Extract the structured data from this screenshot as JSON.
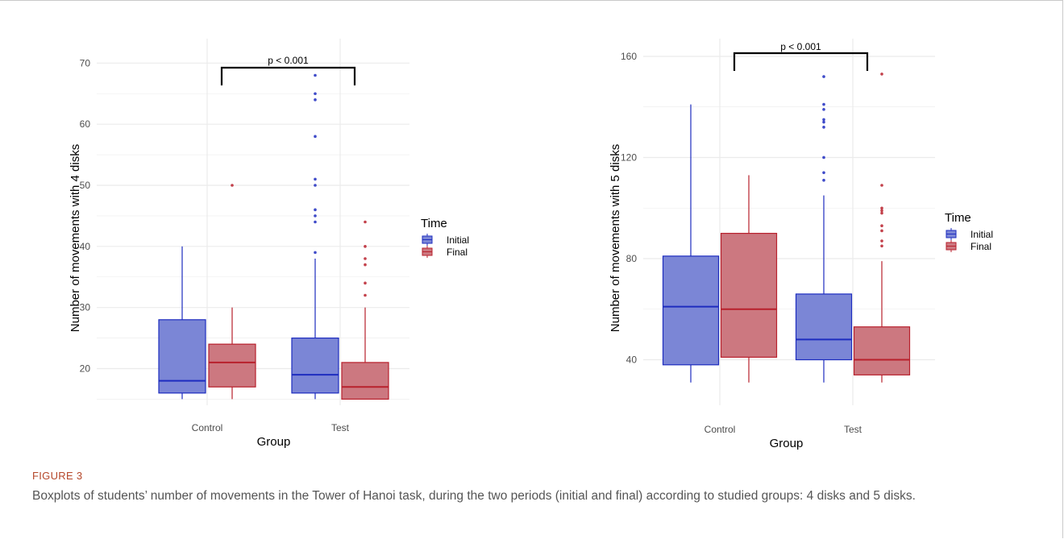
{
  "figure": {
    "label": "FIGURE 3",
    "caption": "Boxplots of students’ number of movements in the Tower of Hanoi task, during the two periods (initial and final) according to studied groups: 4 disks and 5 disks."
  },
  "colors": {
    "initial_fill": "#7b86d6",
    "initial_line": "#1d2cbf",
    "final_fill": "#cc7880",
    "final_line": "#b8202c",
    "grid": "#ebebeb",
    "bracket": "#000000"
  },
  "chart_data": [
    {
      "type": "box",
      "title": "",
      "xlabel": "Group",
      "ylabel": "Number of movements with 4 disks",
      "categories": [
        "Control",
        "Test"
      ],
      "ylim": [
        14,
        74
      ],
      "yticks": [
        20,
        30,
        40,
        50,
        60,
        70
      ],
      "grid": true,
      "legend": {
        "title": "Time",
        "placement": "right",
        "entries": [
          "Initial",
          "Final"
        ]
      },
      "annotation": {
        "text": "p < 0.001",
        "from": "Control",
        "to": "Test"
      },
      "series": [
        {
          "name": "Initial",
          "boxes": [
            {
              "category": "Control",
              "min": 15,
              "q1": 16,
              "median": 18,
              "q3": 28,
              "max": 40,
              "outliers": []
            },
            {
              "category": "Test",
              "min": 15,
              "q1": 16,
              "median": 19,
              "q3": 25,
              "max": 38,
              "outliers": [
                39,
                44,
                45,
                46,
                50,
                51,
                58,
                64,
                65,
                68
              ]
            }
          ]
        },
        {
          "name": "Final",
          "boxes": [
            {
              "category": "Control",
              "min": 15,
              "q1": 17,
              "median": 21,
              "q3": 24,
              "max": 30,
              "outliers": [
                50
              ]
            },
            {
              "category": "Test",
              "min": 15,
              "q1": 15,
              "median": 17,
              "q3": 21,
              "max": 30,
              "outliers": [
                32,
                34,
                37,
                38,
                40,
                44
              ]
            }
          ]
        }
      ]
    },
    {
      "type": "box",
      "title": "",
      "xlabel": "Group",
      "ylabel": "Number of movements with 5 disks",
      "categories": [
        "Control",
        "Test"
      ],
      "ylim": [
        22,
        167
      ],
      "yticks": [
        40,
        80,
        120,
        160
      ],
      "grid": true,
      "legend": {
        "title": "Time",
        "placement": "right",
        "entries": [
          "Initial",
          "Final"
        ]
      },
      "annotation": {
        "text": "p < 0.001",
        "from": "Control",
        "to": "Test"
      },
      "series": [
        {
          "name": "Initial",
          "boxes": [
            {
              "category": "Control",
              "min": 31,
              "q1": 38,
              "median": 61,
              "q3": 81,
              "max": 141,
              "outliers": []
            },
            {
              "category": "Test",
              "min": 31,
              "q1": 40,
              "median": 48,
              "q3": 66,
              "max": 105,
              "outliers": [
                111,
                114,
                120,
                132,
                134,
                135,
                139,
                141,
                152
              ]
            }
          ]
        },
        {
          "name": "Final",
          "boxes": [
            {
              "category": "Control",
              "min": 31,
              "q1": 41,
              "median": 60,
              "q3": 90,
              "max": 113,
              "outliers": []
            },
            {
              "category": "Test",
              "min": 31,
              "q1": 34,
              "median": 40,
              "q3": 53,
              "max": 79,
              "outliers": [
                85,
                87,
                91,
                93,
                98,
                99,
                100,
                109,
                153
              ]
            }
          ]
        }
      ]
    }
  ]
}
